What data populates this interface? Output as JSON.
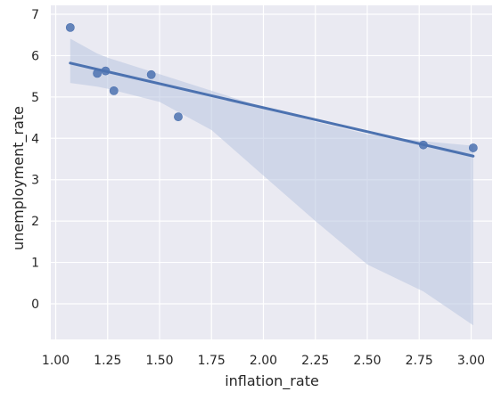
{
  "chart_data": {
    "type": "scatter",
    "title": "",
    "xlabel": "inflation_rate",
    "ylabel": "unemployment_rate",
    "xlim": [
      1.0,
      3.0
    ],
    "ylim": [
      -0.8,
      7.0
    ],
    "xticks": [
      1.0,
      1.25,
      1.5,
      1.75,
      2.0,
      2.25,
      2.5,
      2.75,
      3.0
    ],
    "xtick_labels": [
      "1.00",
      "1.25",
      "1.50",
      "1.75",
      "2.00",
      "2.25",
      "2.50",
      "2.75",
      "3.00"
    ],
    "yticks": [
      0,
      1,
      2,
      3,
      4,
      5,
      6,
      7
    ],
    "ytick_labels": [
      "0",
      "1",
      "2",
      "3",
      "4",
      "5",
      "6",
      "7"
    ],
    "grid": true,
    "series": [
      {
        "x": [
          1.07,
          1.2,
          1.24,
          1.28,
          1.46,
          1.59,
          2.77,
          3.01
        ],
        "y": [
          6.68,
          5.57,
          5.63,
          5.15,
          5.54,
          4.52,
          3.84,
          3.77
        ]
      }
    ],
    "regression": {
      "x": [
        1.07,
        3.01
      ],
      "y": [
        5.82,
        3.57
      ],
      "confidence_band": {
        "x": [
          1.07,
          1.2,
          1.25,
          1.5,
          1.75,
          2.0,
          2.25,
          2.5,
          2.77,
          3.01
        ],
        "upper": [
          6.41,
          6.05,
          5.95,
          5.55,
          5.15,
          4.75,
          4.4,
          4.1,
          3.93,
          3.82
        ],
        "lower": [
          5.34,
          5.25,
          5.2,
          4.88,
          4.2,
          3.1,
          2.0,
          0.95,
          0.3,
          -0.52
        ]
      }
    },
    "colors": {
      "background": "#eaeaf2",
      "grid": "#ffffff",
      "points": "#4c72b0",
      "line": "#4c72b0",
      "band": "#b8c5e0"
    }
  }
}
